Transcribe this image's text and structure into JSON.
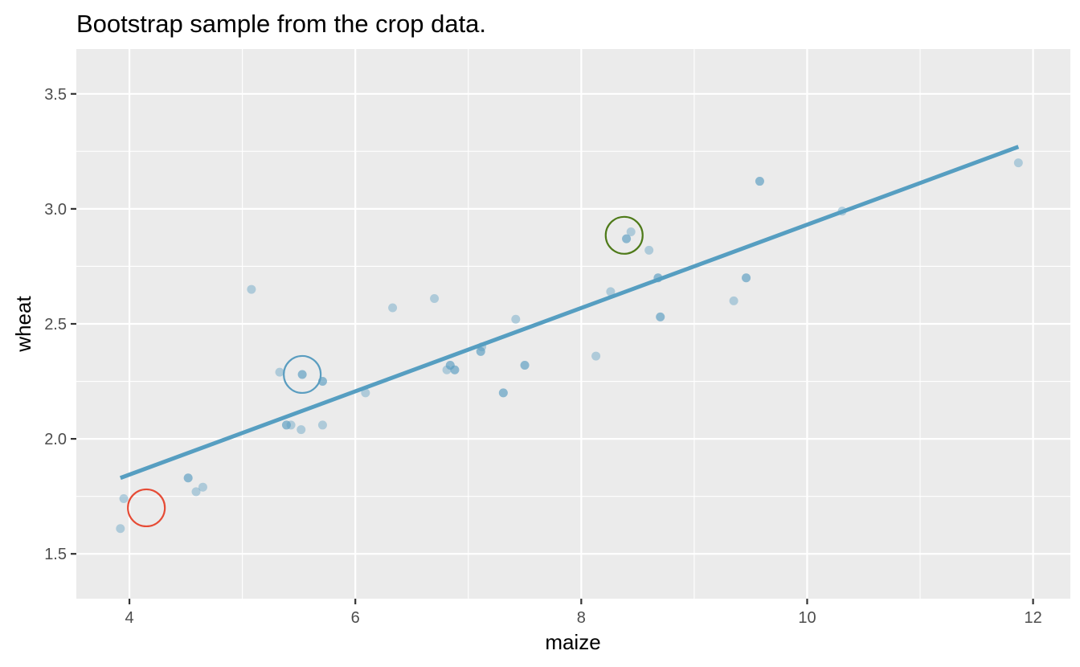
{
  "chart_data": {
    "type": "scatter",
    "title": "Bootstrap sample from the crop data.",
    "xlabel": "maize",
    "ylabel": "wheat",
    "xlim": [
      3.53,
      12.33
    ],
    "ylim": [
      1.305,
      3.695
    ],
    "x_ticks": [
      4,
      6,
      8,
      10,
      12
    ],
    "x_tick_labels": [
      "4",
      "6",
      "8",
      "10",
      "12"
    ],
    "y_ticks": [
      1.5,
      2.0,
      2.5,
      3.0,
      3.5
    ],
    "y_tick_labels": [
      "1.5",
      "2.0",
      "2.5",
      "3.0",
      "3.5"
    ],
    "grid": true,
    "panel_background": "#EBEBEB",
    "point_color": "#5A9DC0",
    "line_color": "#569EC1",
    "series": [
      {
        "points": [
          {
            "x": 3.92,
            "y": 1.61
          },
          {
            "x": 3.95,
            "y": 1.74
          },
          {
            "x": 4.52,
            "y": 1.83
          },
          {
            "x": 4.52,
            "y": 1.83
          },
          {
            "x": 4.59,
            "y": 1.77
          },
          {
            "x": 4.65,
            "y": 1.79
          },
          {
            "x": 5.08,
            "y": 2.65
          },
          {
            "x": 5.33,
            "y": 2.29
          },
          {
            "x": 5.39,
            "y": 2.06
          },
          {
            "x": 5.39,
            "y": 2.06
          },
          {
            "x": 5.43,
            "y": 2.06
          },
          {
            "x": 5.52,
            "y": 2.04
          },
          {
            "x": 5.53,
            "y": 2.28
          },
          {
            "x": 5.53,
            "y": 2.28
          },
          {
            "x": 5.71,
            "y": 2.06
          },
          {
            "x": 5.71,
            "y": 2.25
          },
          {
            "x": 5.71,
            "y": 2.25
          },
          {
            "x": 6.09,
            "y": 2.2
          },
          {
            "x": 6.33,
            "y": 2.57
          },
          {
            "x": 6.7,
            "y": 2.61
          },
          {
            "x": 6.81,
            "y": 2.3
          },
          {
            "x": 6.84,
            "y": 2.32
          },
          {
            "x": 6.84,
            "y": 2.32
          },
          {
            "x": 6.88,
            "y": 2.3
          },
          {
            "x": 6.88,
            "y": 2.3
          },
          {
            "x": 7.11,
            "y": 2.38
          },
          {
            "x": 7.11,
            "y": 2.38
          },
          {
            "x": 7.12,
            "y": 2.4
          },
          {
            "x": 7.31,
            "y": 2.2
          },
          {
            "x": 7.31,
            "y": 2.2
          },
          {
            "x": 7.42,
            "y": 2.52
          },
          {
            "x": 7.5,
            "y": 2.32
          },
          {
            "x": 7.5,
            "y": 2.32
          },
          {
            "x": 8.13,
            "y": 2.36
          },
          {
            "x": 8.26,
            "y": 2.64
          },
          {
            "x": 8.4,
            "y": 2.87
          },
          {
            "x": 8.4,
            "y": 2.87
          },
          {
            "x": 8.44,
            "y": 2.9
          },
          {
            "x": 8.6,
            "y": 2.82
          },
          {
            "x": 8.68,
            "y": 2.7
          },
          {
            "x": 8.68,
            "y": 2.7
          },
          {
            "x": 8.7,
            "y": 2.53
          },
          {
            "x": 8.7,
            "y": 2.53
          },
          {
            "x": 9.35,
            "y": 2.6
          },
          {
            "x": 9.46,
            "y": 2.7
          },
          {
            "x": 9.46,
            "y": 2.7
          },
          {
            "x": 9.58,
            "y": 3.12
          },
          {
            "x": 9.58,
            "y": 3.12
          },
          {
            "x": 10.31,
            "y": 2.99
          },
          {
            "x": 11.87,
            "y": 3.2
          }
        ]
      }
    ],
    "fit_line": {
      "x": [
        3.92,
        11.87
      ],
      "y": [
        1.83,
        3.27
      ]
    },
    "highlights": [
      {
        "x": 4.15,
        "y": 1.7,
        "color": "#E64B35"
      },
      {
        "x": 5.53,
        "y": 2.28,
        "color": "#5A9DC0"
      },
      {
        "x": 8.38,
        "y": 2.885,
        "color": "#4E7A19"
      }
    ]
  }
}
